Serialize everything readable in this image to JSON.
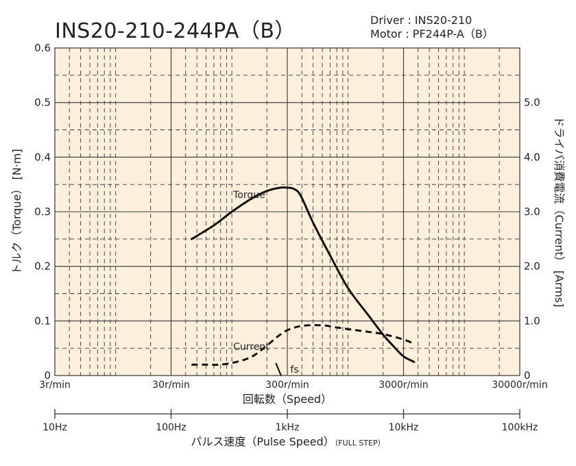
{
  "title": "INS20-210-244PA（B）",
  "spec": {
    "driver": "Driver : INS20-210",
    "motor": "Motor : PF244P-A（B）"
  },
  "colors": {
    "plot_bg": "#fcf0dc",
    "grid": "#333333",
    "curve": "#111111"
  },
  "chart_data": {
    "type": "line",
    "x_scale": "log",
    "xlabel": "回転数（Speed）",
    "xlabel_bottom": "パルス速度（Pulse Speed）",
    "xlabel_bottom_note": "（FULL STEP）",
    "ylabel_left": "トルク（Torque） [N·m]",
    "ylabel_right": "ドライバ消費電流（Current） [Arms]",
    "xlim": [
      3,
      30000
    ],
    "ylim_left": [
      0,
      0.6
    ],
    "ylim_right": [
      0,
      6.0
    ],
    "x_ticks": [
      3,
      30,
      300,
      3000,
      30000
    ],
    "x_tick_labels": [
      "3r/min",
      "30r/min",
      "300r/min",
      "3000r/min",
      "30000r/min"
    ],
    "pulse_ticks": [
      10,
      100,
      1000,
      10000,
      100000
    ],
    "pulse_tick_labels": [
      "10Hz",
      "100Hz",
      "1kHz",
      "10kHz",
      "100kHz"
    ],
    "y_left_ticks": [
      0,
      0.1,
      0.2,
      0.3,
      0.4,
      0.5,
      0.6
    ],
    "y_left_tick_labels": [
      "0",
      "0.1",
      "0.2",
      "0.3",
      "0.4",
      "0.5",
      "0.6"
    ],
    "y_right_ticks": [
      0,
      1.0,
      2.0,
      3.0,
      4.0,
      5.0
    ],
    "y_right_tick_labels": [
      "0",
      "1.0",
      "2.0",
      "3.0",
      "4.0",
      "5.0"
    ],
    "grid": true,
    "series": [
      {
        "name": "Torque",
        "axis": "left",
        "style": "solid",
        "x": [
          45,
          70,
          100,
          150,
          200,
          260,
          300,
          340,
          390,
          500,
          700,
          1000,
          1500,
          2000,
          2500,
          3000,
          3700
        ],
        "y": [
          0.25,
          0.275,
          0.3,
          0.325,
          0.338,
          0.344,
          0.344,
          0.342,
          0.33,
          0.28,
          0.22,
          0.16,
          0.11,
          0.075,
          0.052,
          0.035,
          0.025
        ]
      },
      {
        "name": "Current",
        "axis": "right",
        "style": "dashed",
        "x": [
          45,
          60,
          80,
          110,
          150,
          200,
          250,
          300,
          400,
          600,
          800,
          1000,
          1500,
          2000,
          3000,
          3700
        ],
        "y": [
          0.2,
          0.2,
          0.2,
          0.25,
          0.35,
          0.55,
          0.72,
          0.83,
          0.91,
          0.92,
          0.88,
          0.85,
          0.8,
          0.76,
          0.66,
          0.58
        ]
      },
      {
        "name": "fs",
        "axis": "left",
        "style": "solid",
        "x": [
          240,
          265
        ],
        "y": [
          0.022,
          0.0
        ]
      }
    ],
    "annotations": [
      {
        "text": "Torque",
        "x": 100,
        "y": 0.33,
        "axis": "left"
      },
      {
        "text": "Current",
        "x": 100,
        "y": 0.52,
        "axis": "right"
      },
      {
        "text": "fs",
        "x": 310,
        "y": 0.01,
        "axis": "left"
      }
    ]
  }
}
